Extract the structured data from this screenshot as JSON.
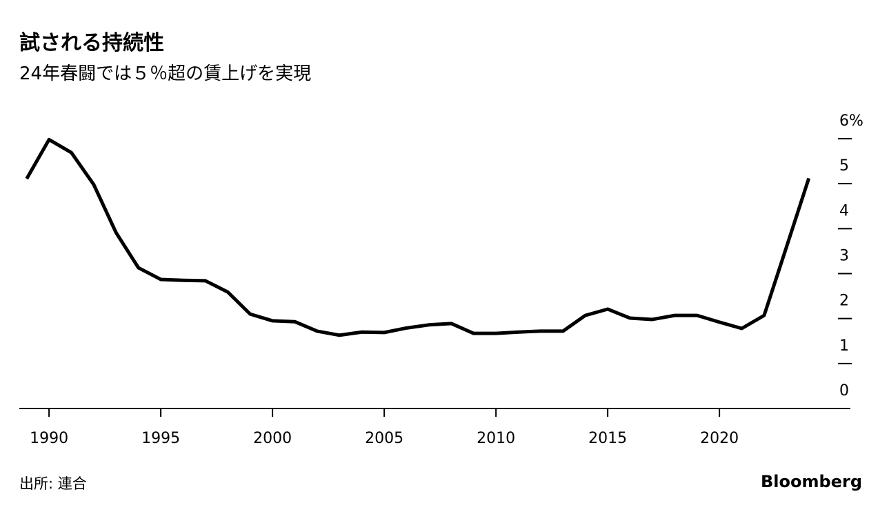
{
  "chart_data": {
    "type": "line",
    "title": "試される持続性",
    "subtitle": "24年春闘では５％超の賃上げを実現",
    "source": "出所: 連合",
    "brand": "Bloomberg",
    "x": [
      1989,
      1990,
      1991,
      1992,
      1993,
      1994,
      1995,
      1996,
      1997,
      1998,
      1999,
      2000,
      2001,
      2002,
      2003,
      2004,
      2005,
      2006,
      2007,
      2008,
      2009,
      2010,
      2011,
      2012,
      2013,
      2014,
      2015,
      2016,
      2017,
      2018,
      2019,
      2020,
      2021,
      2022,
      2023,
      2024
    ],
    "series": [
      {
        "color": "#000000",
        "values": [
          5.11,
          5.98,
          5.69,
          4.98,
          3.91,
          3.13,
          2.87,
          2.85,
          2.84,
          2.59,
          2.1,
          1.95,
          1.93,
          1.72,
          1.63,
          1.7,
          1.69,
          1.79,
          1.86,
          1.89,
          1.67,
          1.67,
          1.7,
          1.72,
          1.72,
          2.07,
          2.21,
          2.01,
          1.98,
          2.07,
          2.07,
          1.92,
          1.78,
          2.07,
          3.59,
          5.12
        ]
      }
    ],
    "xlim": [
      1988.67,
      2025.86
    ],
    "xticks": [
      1990,
      1995,
      2000,
      2005,
      2010,
      2015,
      2020
    ],
    "ylim": [
      0,
      6
    ],
    "yticks": [
      0,
      1,
      2,
      3,
      4,
      5,
      {
        "value": 6,
        "label": "6%"
      }
    ],
    "grid": false
  }
}
